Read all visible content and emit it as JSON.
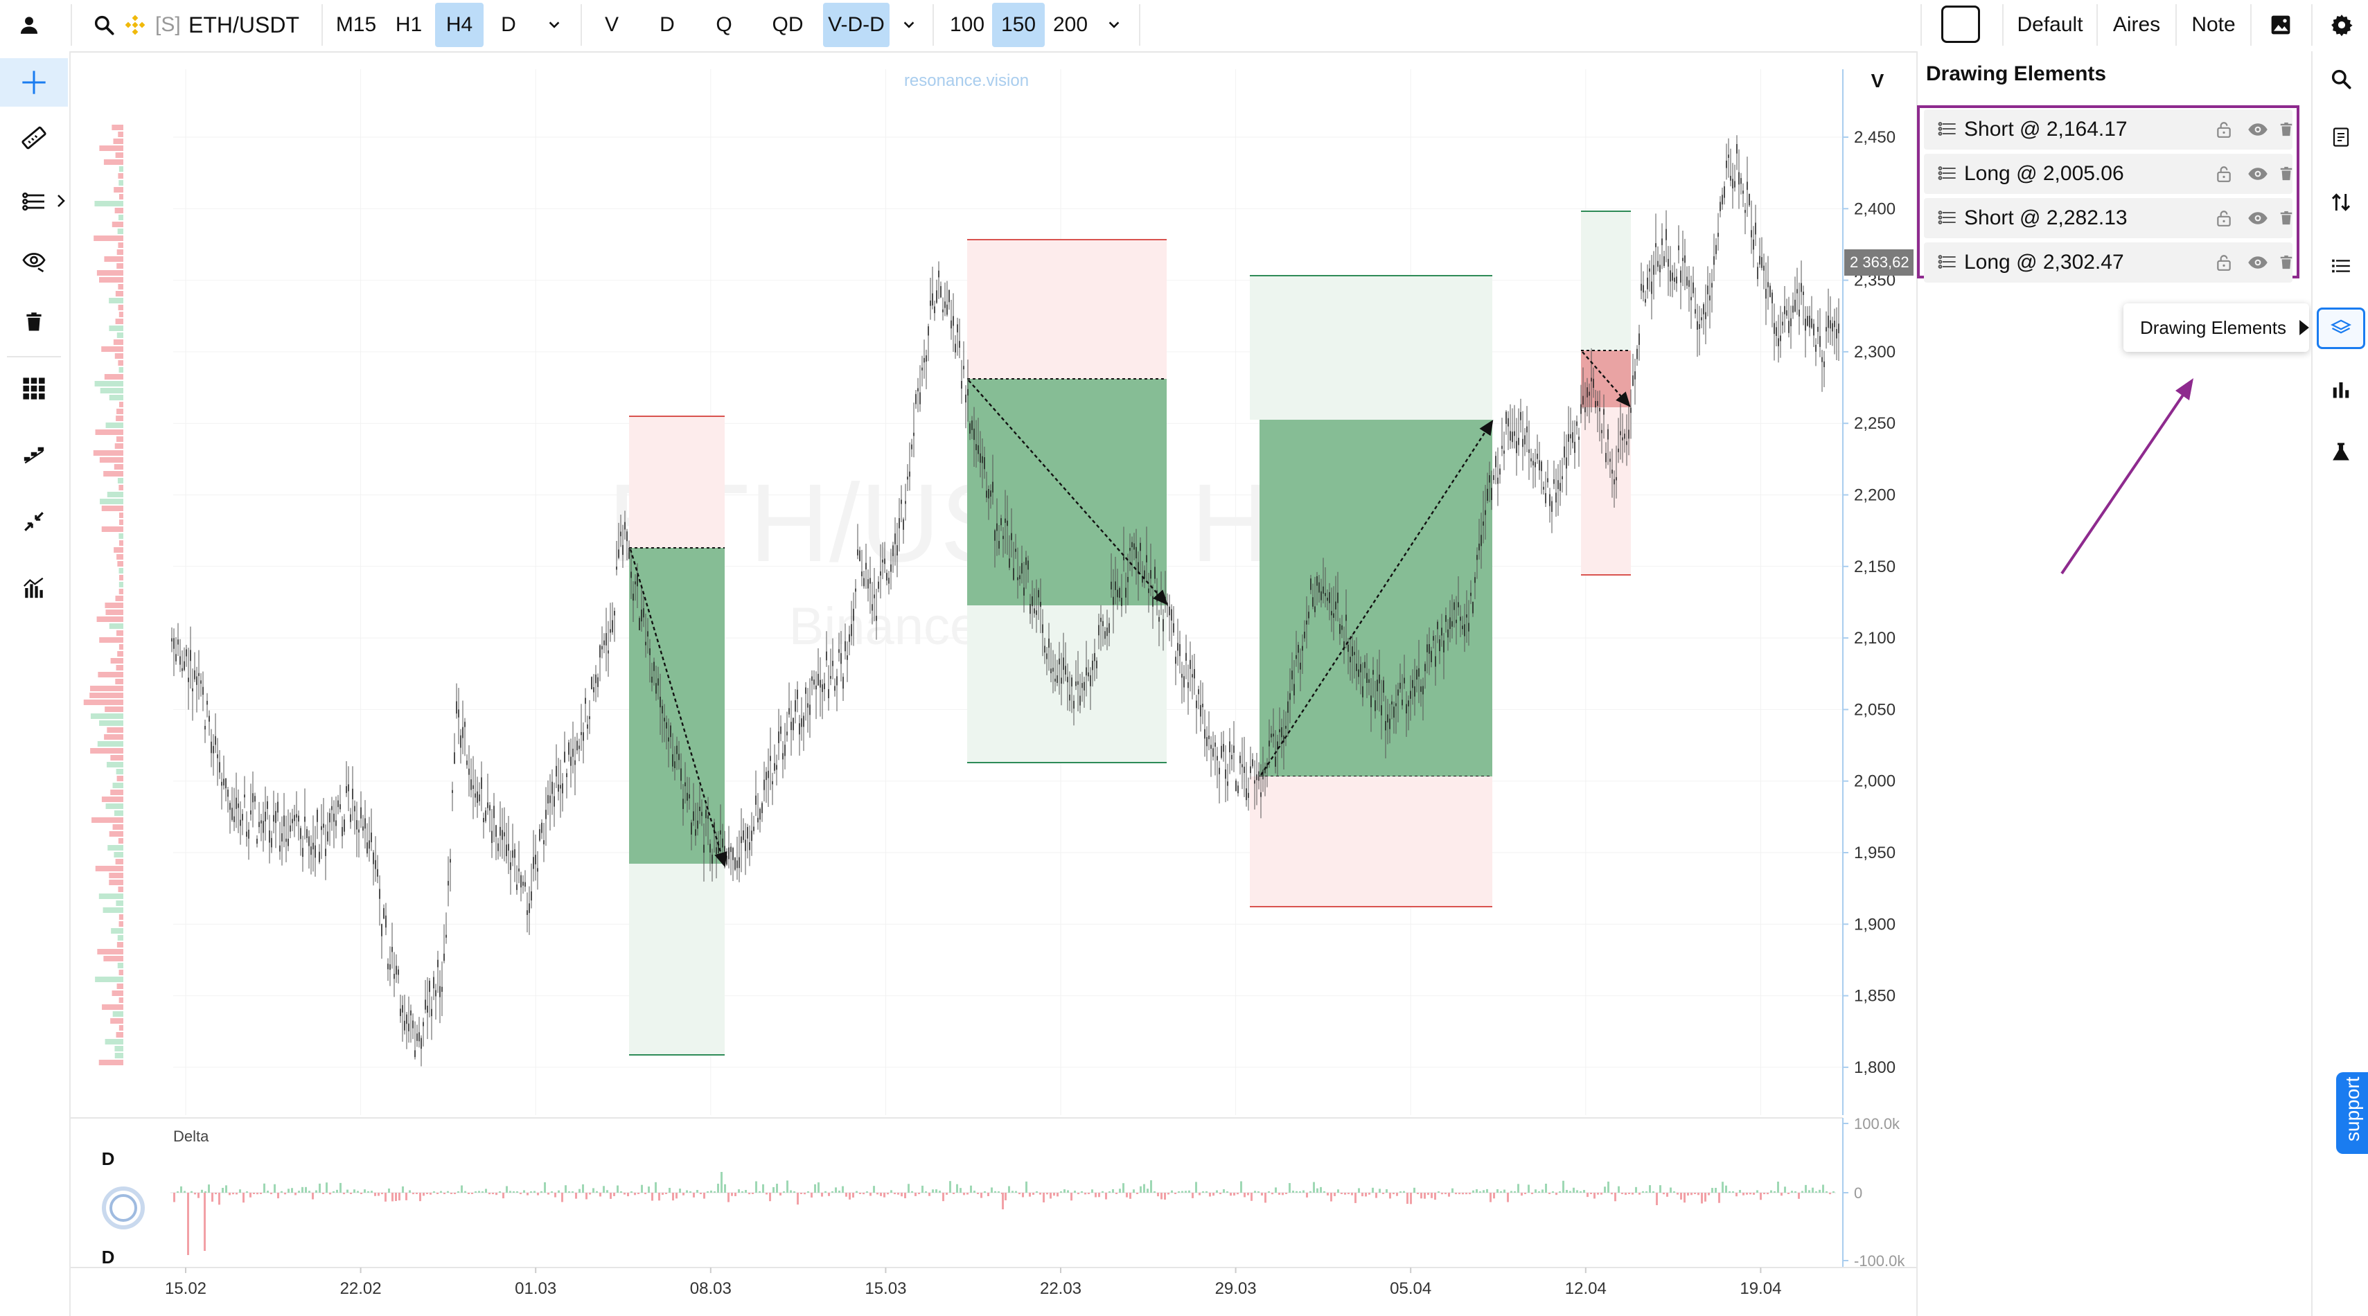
{
  "topbar": {
    "symbol_prefix": "[S]",
    "symbol": "ETH/USDT",
    "timeframes": [
      "M15",
      "H1",
      "H4",
      "D"
    ],
    "selected_timeframe": "H4",
    "modes": [
      "V",
      "D",
      "Q",
      "QD",
      "V-D-D"
    ],
    "selected_mode": "V-D-D",
    "sizes": [
      "100",
      "150",
      "200"
    ],
    "selected_size": "150",
    "right_buttons": [
      "Default",
      "Aires",
      "Note"
    ]
  },
  "chart": {
    "watermark_site": "resonance.vision",
    "watermark_main": "ETH/USDT H4",
    "watermark_sub": "Binance (Spot)",
    "volume_axis_label": "V",
    "current_price_label": "2 363,62",
    "price_axis": [
      "2,450",
      "2,400",
      "2,350",
      "2,300",
      "2,250",
      "2,200",
      "2,150",
      "2,100",
      "2,050",
      "2,000",
      "1,950",
      "1,900",
      "1,850",
      "1,800"
    ],
    "date_axis": [
      "15.02",
      "22.02",
      "01.03",
      "08.03",
      "15.03",
      "22.03",
      "29.03",
      "05.04",
      "12.04",
      "19.04"
    ],
    "delta_label": "Delta",
    "delta_axis": [
      "100.0k",
      "0",
      "-100.0k"
    ],
    "delta_side_top": "D",
    "delta_side_bottom": "D"
  },
  "panel": {
    "title": "Drawing Elements",
    "elements": [
      {
        "label": "Short @ 2,164.17"
      },
      {
        "label": "Long @ 2,005.06"
      },
      {
        "label": "Short @ 2,282.13"
      },
      {
        "label": "Long @ 2,302.47"
      }
    ],
    "tooltip": "Drawing Elements"
  },
  "support_label": "support",
  "colors": {
    "accent": "#1a7cf0",
    "highlight_border": "#8e2a8e",
    "profit_zone": "#7db88c",
    "loss_zone": "#fde8e8",
    "bull_bar": "#a8dfc0",
    "bear_bar": "#f4a6aa"
  },
  "icons": {
    "left_toolbar": [
      "crosshair-icon",
      "ruler-icon",
      "position-tool-icon",
      "eye-icon",
      "trash-icon",
      "grid-icon",
      "pattern-icon",
      "compress-icon",
      "indicator-icon"
    ],
    "right_toolbar": [
      "search-icon",
      "notes-icon",
      "sort-icon",
      "list-icon",
      "layers-icon",
      "bar-chart-icon",
      "flask-icon"
    ]
  }
}
